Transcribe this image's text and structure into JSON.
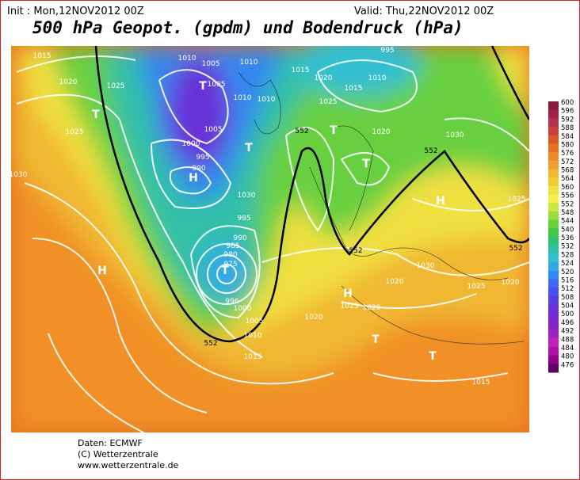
{
  "header": {
    "init": "Init : Mon,12NOV2012 00Z",
    "valid": "Valid: Thu,22NOV2012 00Z",
    "title": "500 hPa Geopot. (gpdm) und Bodendruck (hPa)"
  },
  "legend": {
    "levels": [
      600,
      596,
      592,
      588,
      584,
      580,
      576,
      572,
      568,
      564,
      560,
      556,
      552,
      548,
      544,
      540,
      536,
      532,
      528,
      524,
      520,
      516,
      512,
      508,
      504,
      500,
      496,
      492,
      488,
      484,
      480,
      476
    ],
    "colors": [
      "#8a1838",
      "#a02048",
      "#b83050",
      "#c84038",
      "#d85828",
      "#e87020",
      "#f08828",
      "#f0a030",
      "#f0b830",
      "#f0cc30",
      "#f0e040",
      "#f8f048",
      "#c8e840",
      "#98dc40",
      "#68d040",
      "#40c840",
      "#30c078",
      "#30c0a8",
      "#30c0d0",
      "#30a8e8",
      "#3088f0",
      "#4068f0",
      "#4850f0",
      "#5840e0",
      "#6830d8",
      "#7828d0",
      "#8820c8",
      "#a020c0",
      "#c020c0",
      "#b010a8",
      "#900088",
      "#600060"
    ]
  },
  "map": {
    "labels": [
      "1015",
      "1020",
      "1025",
      "1010",
      "1005",
      "T",
      "1010",
      "1005",
      "1010",
      "1005",
      "1000",
      "995",
      "990",
      "T",
      "T",
      "1015",
      "1020",
      "1025",
      "1010",
      "1015",
      "995",
      "1010",
      "1020",
      "T",
      "1030",
      "T",
      "1025",
      "1030",
      "H",
      "1030",
      "H",
      "995",
      "990",
      "985",
      "980",
      "975",
      "T",
      "996",
      "1000",
      "1005",
      "1010",
      "1015",
      "1020",
      "1025",
      "H",
      "1020",
      "T",
      "T",
      "1030",
      "1025",
      "1020",
      "1015",
      "H",
      "1025",
      "1020",
      "552",
      "552",
      "552",
      "552",
      "552"
    ]
  },
  "footer": {
    "lines": [
      "Daten: ECMWF",
      "(C) Wetterzentrale",
      "www.wetterzentrale.de"
    ]
  }
}
